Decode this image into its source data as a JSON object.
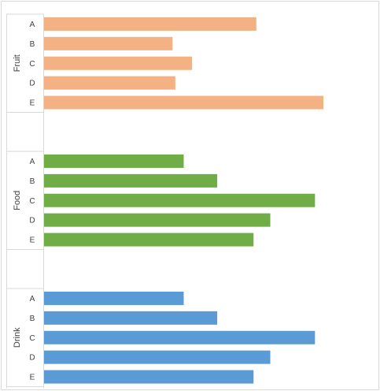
{
  "chart_data": {
    "type": "bar",
    "orientation": "horizontal",
    "title": "",
    "xlabel": "",
    "ylabel": "",
    "grid": false,
    "legend": "none",
    "xlim": [
      0,
      100
    ],
    "categories": [
      "A",
      "B",
      "C",
      "D",
      "E"
    ],
    "groups": [
      {
        "label": "Fruit",
        "color": "#f4b183",
        "values": [
          76,
          46,
          53,
          47,
          100
        ]
      },
      {
        "label": "Food",
        "color": "#70ad47",
        "values": [
          50,
          62,
          97,
          81,
          75
        ]
      },
      {
        "label": "Drink",
        "color": "#5b9bd5",
        "values": [
          50,
          62,
          97,
          81,
          75
        ]
      }
    ]
  }
}
